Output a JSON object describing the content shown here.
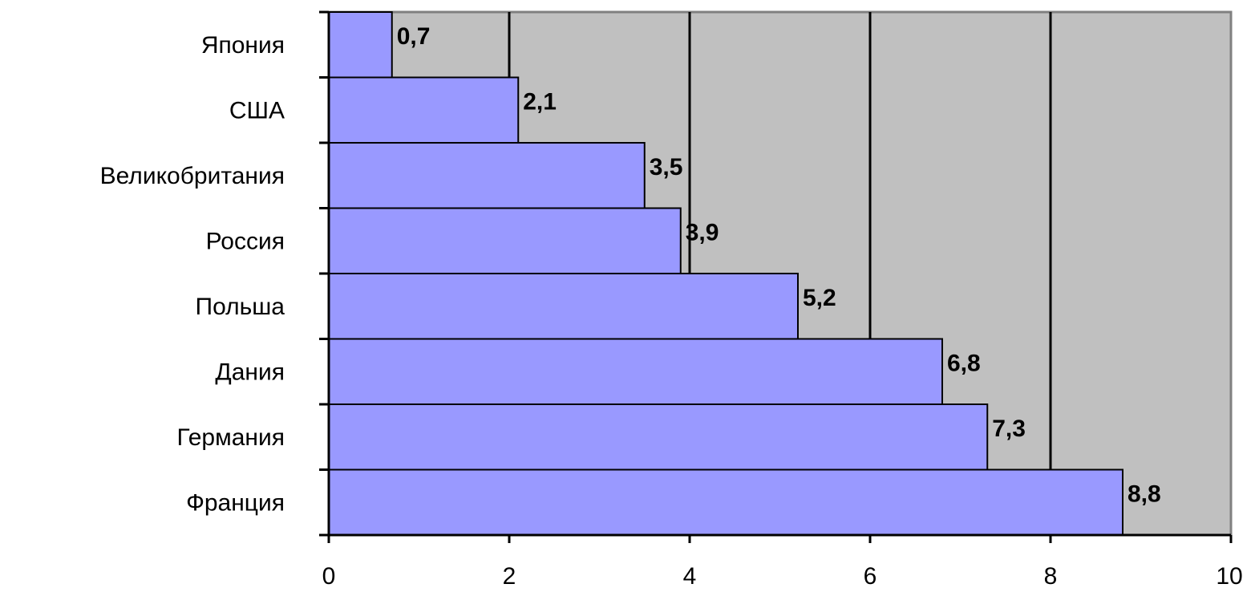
{
  "chart_data": {
    "type": "bar",
    "orientation": "horizontal",
    "categories": [
      "Япония",
      "США",
      "Великобритания",
      "Россия",
      "Польша",
      "Дания",
      "Германия",
      "Франция"
    ],
    "values": [
      0.7,
      2.1,
      3.5,
      3.9,
      5.2,
      6.8,
      7.3,
      8.8
    ],
    "value_labels": [
      "0,7",
      "2,1",
      "3,5",
      "3,9",
      "5,2",
      "6,8",
      "7,3",
      "8,8"
    ],
    "x_ticks": [
      "0",
      "2",
      "4",
      "6",
      "8",
      "10"
    ],
    "xlim": [
      0,
      10
    ],
    "grid": true,
    "colors": {
      "bar": "#9999ff",
      "plot_background": "#c0c0c0",
      "gridline": "#000000"
    }
  }
}
